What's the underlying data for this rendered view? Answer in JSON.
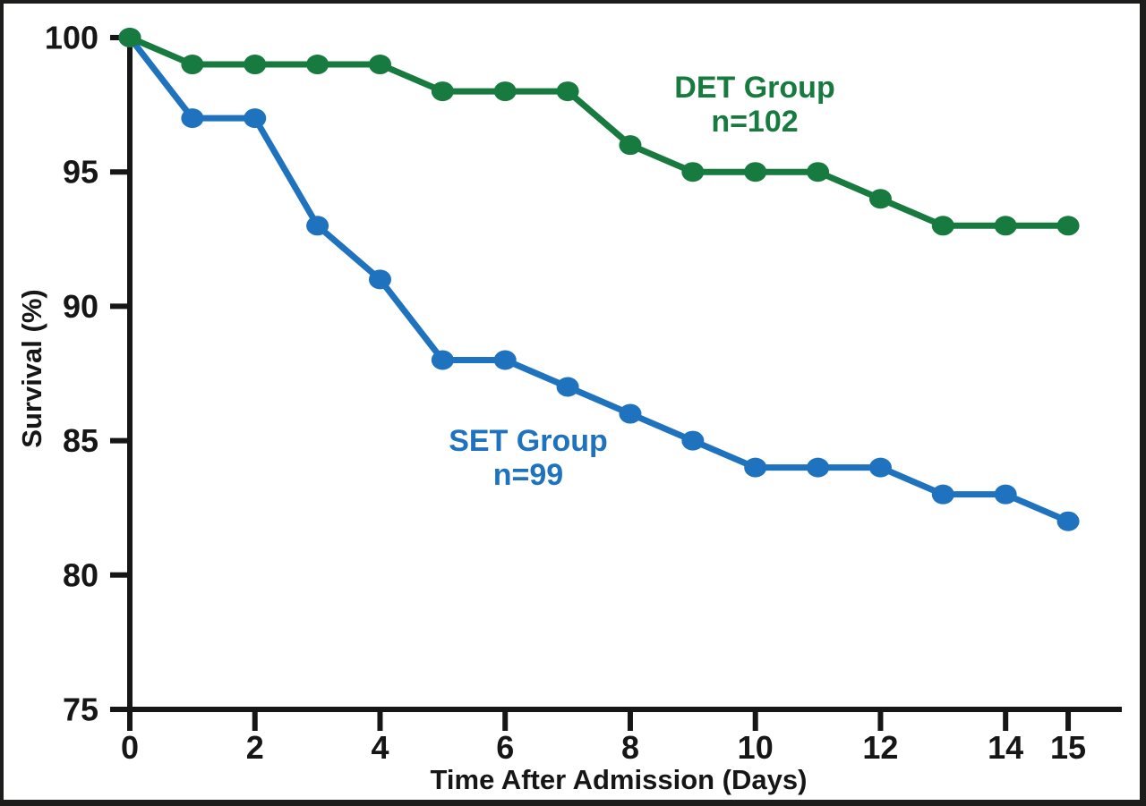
{
  "chart_data": {
    "type": "line",
    "title": "",
    "xlabel": "Time After Admission (Days)",
    "ylabel": "Survival (%)",
    "x": [
      0,
      1,
      2,
      3,
      4,
      5,
      6,
      7,
      8,
      9,
      10,
      11,
      12,
      13,
      14,
      15
    ],
    "x_ticks": [
      0,
      2,
      4,
      6,
      8,
      10,
      12,
      14,
      15
    ],
    "y_ticks": [
      75,
      80,
      85,
      90,
      95,
      100
    ],
    "xlim": [
      0,
      15.9
    ],
    "ylim": [
      75,
      100
    ],
    "grid": false,
    "legend_position": "inline-annotations",
    "axis_color": "#161616",
    "series": [
      {
        "name": "DET Group",
        "n": 102,
        "color": "#177A3E",
        "values": [
          100,
          99,
          99,
          99,
          99,
          98,
          98,
          98,
          96,
          95,
          95,
          95,
          94,
          93,
          93,
          93
        ]
      },
      {
        "name": "SET Group",
        "n": 99,
        "color": "#1F73BE",
        "values": [
          100,
          97,
          97,
          93,
          91,
          88,
          88,
          87,
          86,
          85,
          84,
          84,
          84,
          83,
          83,
          82
        ]
      }
    ],
    "annotations": [
      {
        "lines": [
          "DET Group",
          "n=102"
        ],
        "color": "#177A3E"
      },
      {
        "lines": [
          "SET Group",
          "n=99"
        ],
        "color": "#1F73BE"
      }
    ]
  }
}
